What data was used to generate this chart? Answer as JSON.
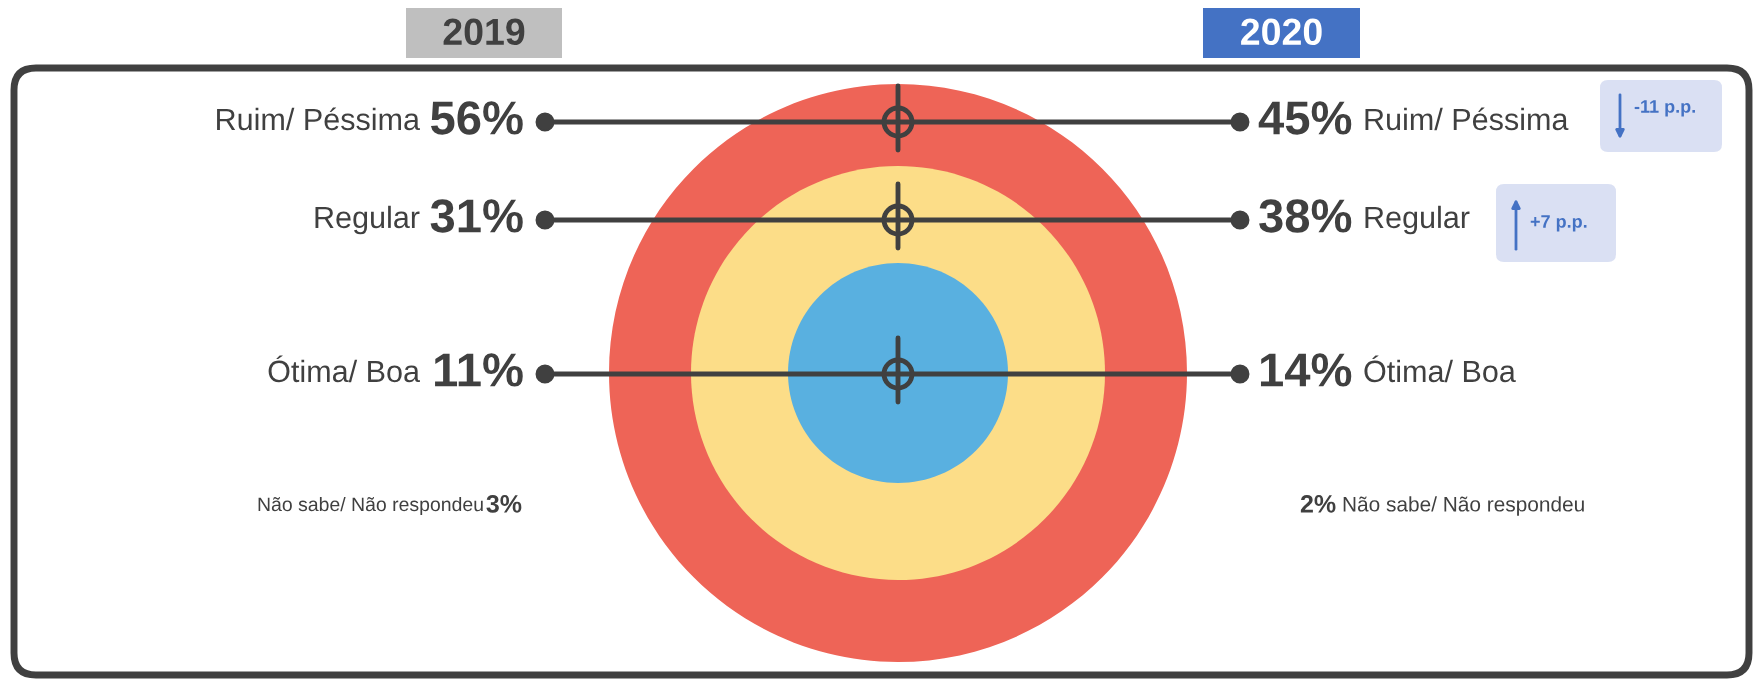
{
  "chart_data": {
    "type": "other",
    "categories": [
      "Ruim/ Péssima",
      "Regular",
      "Ótima/ Boa",
      "Não sabe/ Não respondeu"
    ],
    "series": [
      {
        "name": "2019",
        "values": [
          56,
          31,
          11,
          3
        ],
        "value_labels": [
          "56%",
          "31%",
          "11%",
          "3%"
        ]
      },
      {
        "name": "2020",
        "values": [
          45,
          38,
          14,
          2
        ],
        "value_labels": [
          "45%",
          "38%",
          "14%",
          "2%"
        ]
      }
    ],
    "annotations": [
      "-11 p.p.",
      "+7 p.p."
    ],
    "legend": false
  }
}
